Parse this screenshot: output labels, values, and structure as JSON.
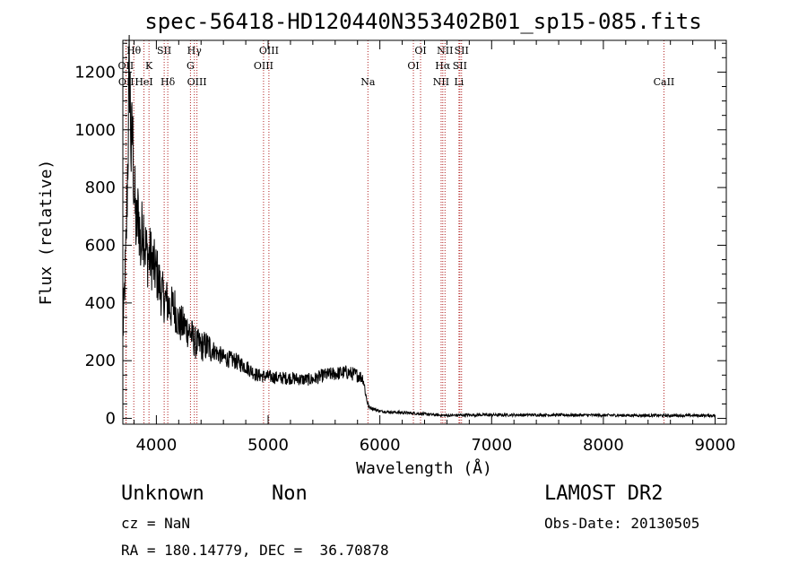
{
  "chart_data": {
    "type": "line",
    "title": "spec-56418-HD120440N353402B01_sp15-085.fits",
    "xlabel": "Wavelength (Å)",
    "ylabel": "Flux (relative)",
    "xlim": [
      3700,
      9100
    ],
    "ylim": [
      -20,
      1310
    ],
    "xticks": [
      4000,
      5000,
      6000,
      7000,
      8000,
      9000
    ],
    "yticks": [
      0,
      200,
      400,
      600,
      800,
      1000,
      1200
    ],
    "grid": false,
    "line_color": "#000000",
    "marker_color": "#b22222",
    "spectrum": {
      "x": [
        3700,
        3730,
        3760,
        3775,
        3785,
        3800,
        3820,
        3840,
        3860,
        3880,
        3900,
        3920,
        3950,
        3980,
        4000,
        4030,
        4060,
        4100,
        4130,
        4160,
        4200,
        4250,
        4300,
        4350,
        4400,
        4450,
        4500,
        4600,
        4700,
        4800,
        4900,
        5000,
        5100,
        5200,
        5300,
        5400,
        5500,
        5600,
        5700,
        5800,
        5850,
        5880,
        5900,
        5930,
        6000,
        6100,
        6200,
        6300,
        6400,
        6500,
        6600,
        6800,
        7000,
        7500,
        8000,
        8500,
        9000
      ],
      "y": [
        280,
        600,
        1240,
        900,
        1000,
        800,
        650,
        720,
        580,
        690,
        600,
        560,
        560,
        520,
        510,
        460,
        420,
        400,
        380,
        390,
        330,
        320,
        300,
        260,
        250,
        250,
        240,
        210,
        200,
        180,
        150,
        145,
        140,
        140,
        135,
        135,
        150,
        155,
        160,
        150,
        140,
        70,
        40,
        35,
        25,
        22,
        20,
        18,
        15,
        12,
        10,
        12,
        12,
        12,
        11,
        10,
        10
      ]
    },
    "lines": [
      {
        "name": "Hθ",
        "wavelength": 3798,
        "row": 0
      },
      {
        "name": "OII",
        "wavelength": 3727,
        "row": 1
      },
      {
        "name": "OII",
        "wavelength": 3730,
        "row": 2
      },
      {
        "name": "K",
        "wavelength": 3934,
        "row": 1
      },
      {
        "name": "HeI",
        "wavelength": 3889,
        "row": 2
      },
      {
        "name": "SII",
        "wavelength": 4070,
        "row": 0
      },
      {
        "name": "Hδ",
        "wavelength": 4102,
        "row": 2
      },
      {
        "name": "Hγ",
        "wavelength": 4340,
        "row": 0
      },
      {
        "name": "G",
        "wavelength": 4305,
        "row": 1
      },
      {
        "name": "OIII",
        "wavelength": 4363,
        "row": 2
      },
      {
        "name": "OIII",
        "wavelength": 5007,
        "row": 0
      },
      {
        "name": "OIII",
        "wavelength": 4959,
        "row": 1
      },
      {
        "name": "Na",
        "wavelength": 5893,
        "row": 2
      },
      {
        "name": "OI",
        "wavelength": 6364,
        "row": 0
      },
      {
        "name": "OI",
        "wavelength": 6300,
        "row": 1
      },
      {
        "name": "NII",
        "wavelength": 6583,
        "row": 0
      },
      {
        "name": "Hα",
        "wavelength": 6563,
        "row": 1
      },
      {
        "name": "NII",
        "wavelength": 6548,
        "row": 2
      },
      {
        "name": "SII",
        "wavelength": 6731,
        "row": 0
      },
      {
        "name": "SII",
        "wavelength": 6716,
        "row": 1
      },
      {
        "name": "Li",
        "wavelength": 6708,
        "row": 2
      },
      {
        "name": "CaII",
        "wavelength": 8542,
        "row": 2
      }
    ]
  },
  "info": {
    "object_type": "Unknown",
    "object_subtype": "Non",
    "survey": "LAMOST DR2",
    "cz": "cz = NaN",
    "obs_date": "Obs-Date: 20130505",
    "coords": "RA = 180.14779, DEC =  36.70878"
  }
}
